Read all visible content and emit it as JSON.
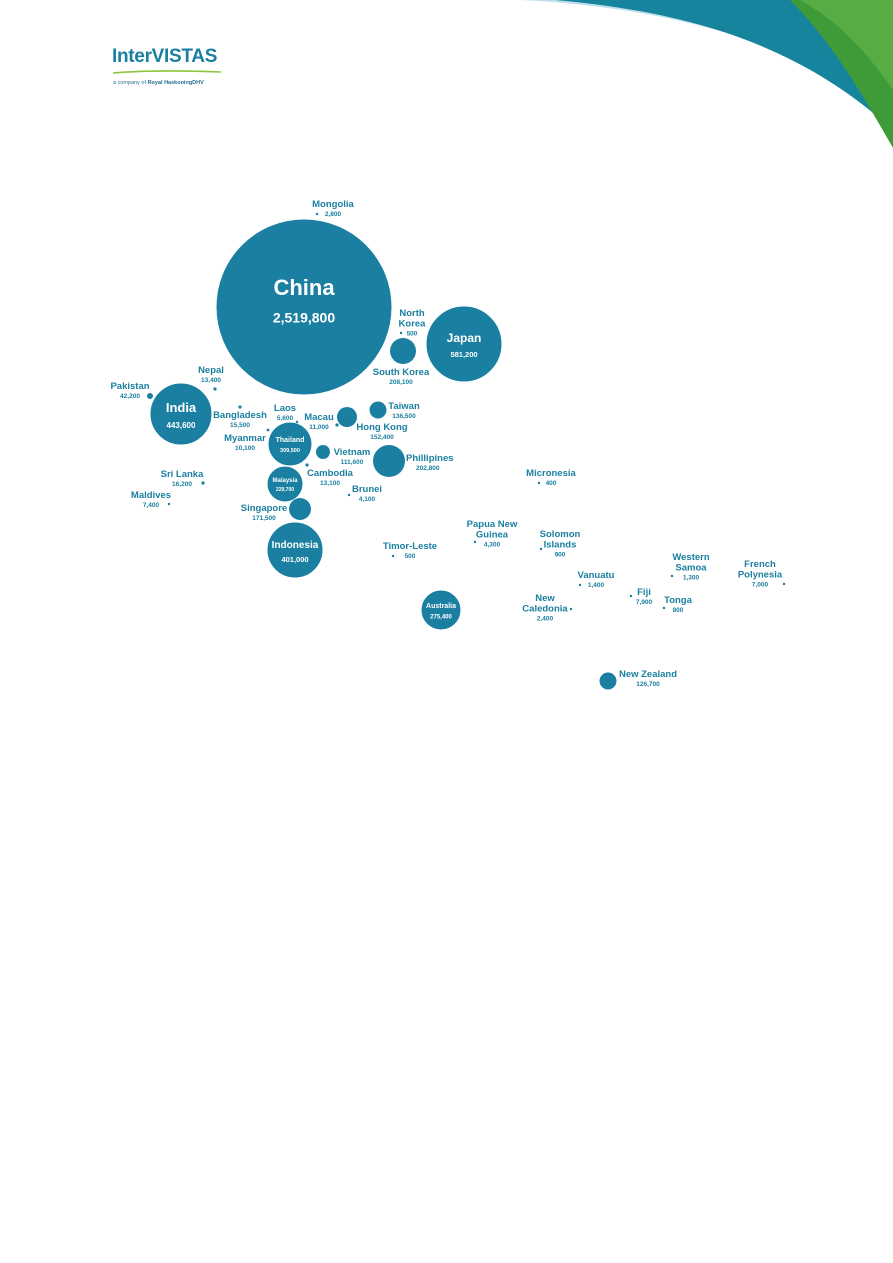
{
  "logo": {
    "brand": "InterVISTAS",
    "tagline_prefix": "a company of",
    "tagline_company": "Royal HaskoningDHV"
  },
  "colors": {
    "bubble": "#1a7fa0",
    "label": "#1a7fa0",
    "inside_text": "#ffffff",
    "swoosh_teal": "#17849e",
    "swoosh_green": "#3f9b37",
    "swoosh_light": "#bfe0ea"
  },
  "chart_data": {
    "type": "bubble",
    "title": "",
    "series": [
      {
        "name": "China",
        "value": "2,519,800",
        "amount": 2519800
      },
      {
        "name": "Japan",
        "value": "581,200",
        "amount": 581200
      },
      {
        "name": "India",
        "value": "443,600",
        "amount": 443600
      },
      {
        "name": "Indonesia",
        "value": "401,000",
        "amount": 401000
      },
      {
        "name": "Thailand",
        "value": "309,500",
        "amount": 309500
      },
      {
        "name": "Australia",
        "value": "275,400",
        "amount": 275400
      },
      {
        "name": "Malaysia",
        "value": "229,700",
        "amount": 229700
      },
      {
        "name": "South Korea",
        "value": "208,100",
        "amount": 208100
      },
      {
        "name": "Phillipines",
        "value": "202,800",
        "amount": 202800
      },
      {
        "name": "Singapore",
        "value": "171,500",
        "amount": 171500
      },
      {
        "name": "Hong Kong",
        "value": "152,400",
        "amount": 152400
      },
      {
        "name": "Taiwan",
        "value": "136,500",
        "amount": 136500
      },
      {
        "name": "New Zealand",
        "value": "126,700",
        "amount": 126700
      },
      {
        "name": "Vietnam",
        "value": "111,600",
        "amount": 111600
      },
      {
        "name": "Pakistan",
        "value": "42,200",
        "amount": 42200
      },
      {
        "name": "Sri Lanka",
        "value": "16,200",
        "amount": 16200
      },
      {
        "name": "Bangladesh",
        "value": "15,500",
        "amount": 15500
      },
      {
        "name": "Nepal",
        "value": "13,400",
        "amount": 13400
      },
      {
        "name": "Cambodia",
        "value": "13,100",
        "amount": 13100
      },
      {
        "name": "Macau",
        "value": "11,000",
        "amount": 11000
      },
      {
        "name": "Myanmar",
        "value": "10,100",
        "amount": 10100
      },
      {
        "name": "Fiji",
        "value": "7,900",
        "amount": 7900
      },
      {
        "name": "Maldives",
        "value": "7,400",
        "amount": 7400
      },
      {
        "name": "French Polynesia",
        "value": "7,000",
        "amount": 7000
      },
      {
        "name": "Laos",
        "value": "5,600",
        "amount": 5600
      },
      {
        "name": "Papua New Guinea",
        "value": "4,300",
        "amount": 4300
      },
      {
        "name": "Brunei",
        "value": "4,100",
        "amount": 4100
      },
      {
        "name": "Mongolia",
        "value": "2,800",
        "amount": 2800
      },
      {
        "name": "New Caledonia",
        "value": "2,400",
        "amount": 2400
      },
      {
        "name": "Vanuatu",
        "value": "1,400",
        "amount": 1400
      },
      {
        "name": "Western Samoa",
        "value": "1,300",
        "amount": 1300
      },
      {
        "name": "Solomon Islands",
        "value": "900",
        "amount": 900
      },
      {
        "name": "Tonga",
        "value": "800",
        "amount": 800
      },
      {
        "name": "North Korea",
        "value": "500",
        "amount": 500
      },
      {
        "name": "Timor-Leste",
        "value": "500",
        "amount": 500
      },
      {
        "name": "Micronesia",
        "value": "400",
        "amount": 400
      }
    ]
  }
}
